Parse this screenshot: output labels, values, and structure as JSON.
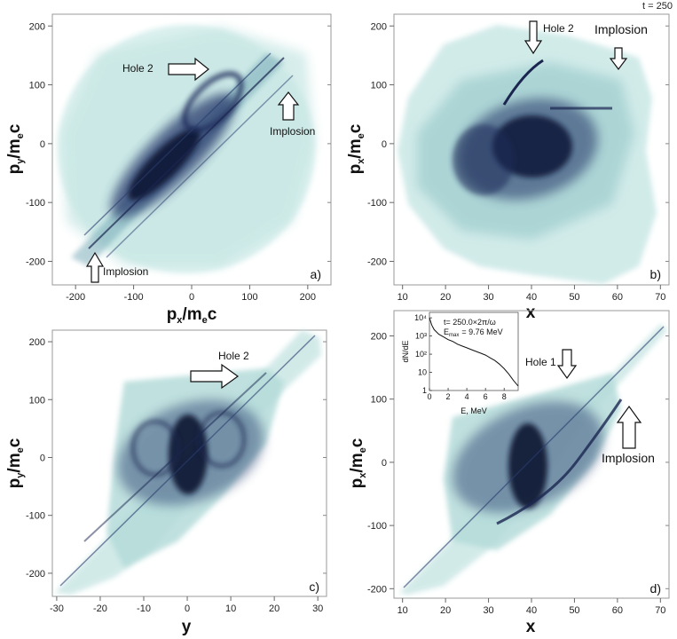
{
  "figure": {
    "time_label": "t = 250",
    "colors": {
      "cloud_light": "#bfe3e0",
      "cloud_mid": "#7fb9bd",
      "cloud_dark": "#1a2550",
      "frame": "#999999"
    }
  },
  "chart_data": [
    {
      "panel": "a",
      "type": "scatter",
      "panel_label": "a)",
      "xlabel": "p",
      "xlabel_sub": "x",
      "xlabel_tail": "/m",
      "xlabel_sub2": "e",
      "xlabel_end": "c",
      "ylabel": "p",
      "ylabel_sub": "y",
      "ylabel_tail": "/m",
      "ylabel_sub2": "e",
      "ylabel_end": "c",
      "xlim": [
        -240,
        240
      ],
      "ylim": [
        -240,
        220
      ],
      "xticks": [
        -200,
        -100,
        0,
        100,
        200
      ],
      "yticks": [
        -200,
        -100,
        0,
        100,
        200
      ],
      "annotations": [
        {
          "text": "Hole 2",
          "x": 45,
          "y": 130,
          "dir": "right"
        },
        {
          "text": "Implosion",
          "x": 175,
          "y": 80,
          "dir": "up"
        },
        {
          "text": "Implosion",
          "x": -155,
          "y": -195,
          "dir": "up"
        }
      ]
    },
    {
      "panel": "b",
      "type": "scatter",
      "panel_label": "b)",
      "xlabel": "x",
      "ylabel": "p",
      "ylabel_sub": "x",
      "ylabel_tail": "/m",
      "ylabel_sub2": "e",
      "ylabel_end": "c",
      "xlim": [
        8,
        72
      ],
      "ylim": [
        -240,
        220
      ],
      "xticks": [
        10,
        20,
        30,
        40,
        50,
        60,
        70
      ],
      "yticks": [
        -200,
        -100,
        0,
        100,
        200
      ],
      "annotations": [
        {
          "text": "Hole 2",
          "x": 40,
          "y": 165,
          "dir": "down"
        },
        {
          "text": "Implosion",
          "x": 60,
          "y": 140,
          "dir": "down"
        }
      ]
    },
    {
      "panel": "c",
      "type": "scatter",
      "panel_label": "c)",
      "xlabel": "y",
      "ylabel": "p",
      "ylabel_sub": "y",
      "ylabel_tail": "/m",
      "ylabel_sub2": "e",
      "ylabel_end": "c",
      "xlim": [
        -31,
        32
      ],
      "ylim": [
        -240,
        220
      ],
      "xticks": [
        -30,
        -20,
        -10,
        0,
        10,
        20,
        30
      ],
      "yticks": [
        -200,
        -100,
        0,
        100,
        200
      ],
      "annotations": [
        {
          "text": "Hole 2",
          "x": 20,
          "y": 140,
          "dir": "right"
        }
      ]
    },
    {
      "panel": "d",
      "type": "scatter",
      "panel_label": "d)",
      "xlabel": "x",
      "ylabel": "p",
      "ylabel_sub": "x",
      "ylabel_tail": "/m",
      "ylabel_sub2": "e",
      "ylabel_end": "c",
      "xlim": [
        8,
        72
      ],
      "ylim": [
        -215,
        240
      ],
      "xticks": [
        10,
        20,
        30,
        40,
        50,
        60,
        70
      ],
      "yticks": [
        -200,
        -100,
        0,
        100,
        200
      ],
      "annotations": [
        {
          "text": "Hole 1",
          "x": 48,
          "y": 160,
          "dir": "down"
        },
        {
          "text": "Implosion",
          "x": 63,
          "y": 60,
          "dir": "up"
        }
      ],
      "inset": {
        "type": "line",
        "xlabel": "E, MeV",
        "ylabel": "dN/dE",
        "xticks": [
          0,
          2,
          4,
          6,
          8
        ],
        "yticks": [
          "1",
          "10",
          "10²",
          "10³",
          "10⁴"
        ],
        "xlim": [
          0,
          9.5
        ],
        "ylim_log10": [
          0,
          4.3
        ],
        "text_line1": "t=   250.0×2π/ω",
        "text_line2": "E",
        "text_line2_sub": "max",
        "text_line2_val": "=  9.76 MeV",
        "x": [
          0,
          0.25,
          0.5,
          1,
          1.5,
          2,
          2.5,
          3,
          3.5,
          4,
          4.5,
          5,
          5.5,
          6,
          6.5,
          7,
          7.5,
          8,
          8.5,
          9,
          9.5
        ],
        "log10_y": [
          4.0,
          3.6,
          3.35,
          3.1,
          2.95,
          2.8,
          2.7,
          2.55,
          2.45,
          2.35,
          2.25,
          2.15,
          2.05,
          1.95,
          1.8,
          1.65,
          1.45,
          1.2,
          0.9,
          0.55,
          0.25
        ]
      }
    }
  ]
}
